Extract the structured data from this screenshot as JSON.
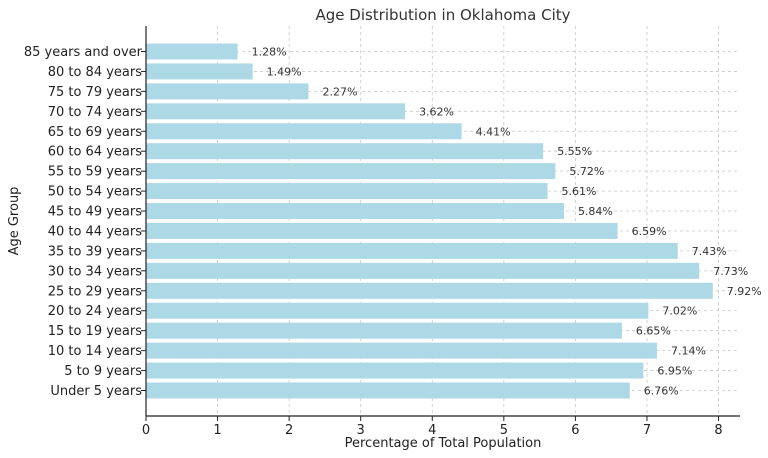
{
  "chart_data": {
    "type": "bar",
    "orientation": "horizontal",
    "title": "Age Distribution in Oklahoma City",
    "xlabel": "Percentage of Total Population",
    "ylabel": "Age Group",
    "xlim": [
      0,
      8.3
    ],
    "xticks": [
      0,
      1,
      2,
      3,
      4,
      5,
      6,
      7,
      8
    ],
    "grid": true,
    "bar_color": "#add8e6",
    "categories": [
      "Under 5 years",
      "5 to 9 years",
      "10 to 14 years",
      "15 to 19 years",
      "20 to 24 years",
      "25 to 29 years",
      "30 to 34 years",
      "35 to 39 years",
      "40 to 44 years",
      "45 to 49 years",
      "50 to 54 years",
      "55 to 59 years",
      "60 to 64 years",
      "65 to 69 years",
      "70 to 74 years",
      "75 to 79 years",
      "80 to 84 years",
      "85 years and over"
    ],
    "values": [
      6.76,
      6.95,
      7.14,
      6.65,
      7.02,
      7.92,
      7.73,
      7.43,
      6.59,
      5.84,
      5.61,
      5.72,
      5.55,
      4.41,
      3.62,
      2.27,
      1.49,
      1.28
    ],
    "data_labels": [
      "6.76%",
      "6.95%",
      "7.14%",
      "6.65%",
      "7.02%",
      "7.92%",
      "7.73%",
      "7.43%",
      "6.59%",
      "5.84%",
      "5.61%",
      "5.72%",
      "5.55%",
      "4.41%",
      "3.62%",
      "2.27%",
      "1.49%",
      "1.28%"
    ]
  }
}
